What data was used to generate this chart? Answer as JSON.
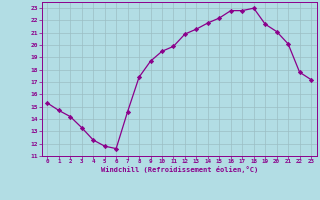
{
  "hours": [
    0,
    1,
    2,
    3,
    4,
    5,
    6,
    7,
    8,
    9,
    10,
    11,
    12,
    13,
    14,
    15,
    16,
    17,
    18,
    19,
    20,
    21,
    22,
    23
  ],
  "temps": [
    15.3,
    14.7,
    14.2,
    13.3,
    12.3,
    11.8,
    11.6,
    14.6,
    17.4,
    18.7,
    19.5,
    19.9,
    20.9,
    21.3,
    21.8,
    22.2,
    22.8,
    22.8,
    23.0,
    21.7,
    21.1,
    20.1,
    17.8,
    17.2
  ],
  "line_color": "#8B008B",
  "marker": "D",
  "marker_size": 2.2,
  "bg_color": "#b2dde4",
  "grid_color": "#9cbec4",
  "xlabel": "Windchill (Refroidissement éolien,°C)",
  "ylim": [
    11,
    23.5
  ],
  "xlim": [
    -0.5,
    23.5
  ],
  "yticks": [
    11,
    12,
    13,
    14,
    15,
    16,
    17,
    18,
    19,
    20,
    21,
    22,
    23
  ],
  "xticks": [
    0,
    1,
    2,
    3,
    4,
    5,
    6,
    7,
    8,
    9,
    10,
    11,
    12,
    13,
    14,
    15,
    16,
    17,
    18,
    19,
    20,
    21,
    22,
    23
  ]
}
